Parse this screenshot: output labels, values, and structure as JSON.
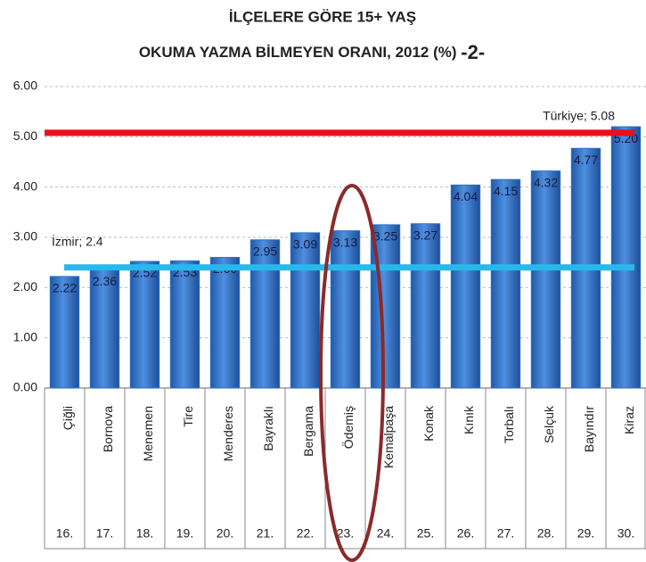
{
  "chart_data": {
    "type": "bar",
    "title": "İLÇELERE GÖRE 15+ YAŞ",
    "subtitle": "OKUMA YAZMA BİLMEYEN ORANI, 2012 (%)",
    "subtitle_suffix": "-2-",
    "categories": [
      "Çiğli",
      "Bornova",
      "Menemen",
      "Tire",
      "Menderes",
      "Bayraklı",
      "Bergama",
      "Ödemiş",
      "Kemalpaşa",
      "Konak",
      "Kınık",
      "Torbalı",
      "Selçuk",
      "Bayındır",
      "Kiraz"
    ],
    "ranks": [
      "16.",
      "17.",
      "18.",
      "19.",
      "20.",
      "21.",
      "22.",
      "23.",
      "24.",
      "25.",
      "26.",
      "27.",
      "28.",
      "29.",
      "30."
    ],
    "values": [
      2.22,
      2.36,
      2.52,
      2.53,
      2.6,
      2.95,
      3.09,
      3.13,
      3.25,
      3.27,
      4.04,
      4.15,
      4.32,
      4.77,
      5.2
    ],
    "value_labels": [
      "2.22",
      "2.36",
      "2.52",
      "2.53",
      "2.60",
      "2.95",
      "3.09",
      "3.13",
      "3.25",
      "3.27",
      "4.04",
      "4.15",
      "4.32",
      "4.77",
      "5.20"
    ],
    "color": "#2f6fc4",
    "ylim": [
      0,
      6
    ],
    "yticks": [
      {
        "value": 0,
        "label": "0.00"
      },
      {
        "value": 1,
        "label": "1.00"
      },
      {
        "value": 2,
        "label": "2.00"
      },
      {
        "value": 3,
        "label": "3.00"
      },
      {
        "value": 4,
        "label": "4.00"
      },
      {
        "value": 5,
        "label": "5.00"
      },
      {
        "value": 6,
        "label": "6.00"
      }
    ],
    "grid": true,
    "reference_lines": [
      {
        "label": "Türkiye; 5.08",
        "value": 5.08,
        "color": "#e8101a"
      },
      {
        "label": "İzmir; 2.4",
        "value": 2.4,
        "color": "#2ab8ec"
      }
    ]
  }
}
